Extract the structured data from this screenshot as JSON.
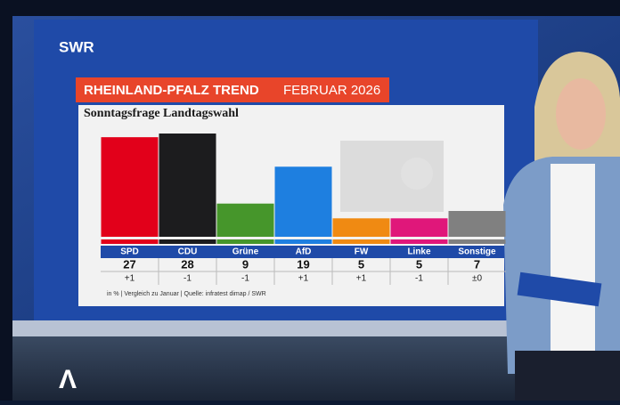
{
  "logo": "SWR",
  "chart_data": {
    "type": "bar",
    "title": "RHEINLAND-PFALZ TREND",
    "date": "FEBRUAR 2026",
    "subtitle": "Sonntagsfrage Landtagswahl",
    "categories": [
      "SPD",
      "CDU",
      "Grüne",
      "AfD",
      "FW",
      "Linke",
      "Sonstige"
    ],
    "values": [
      27,
      28,
      9,
      19,
      5,
      5,
      7
    ],
    "colors": [
      "#e2001a",
      "#1c1c1e",
      "#46962b",
      "#1e7fe0",
      "#f08a12",
      "#e0177a",
      "#808080"
    ],
    "changes": [
      "+1",
      "-1",
      "-1",
      "+1",
      "+1",
      "-1",
      "±0"
    ],
    "footnote": "in % | Vergleich zu Januar | Quelle: infratest dimap / SWR"
  }
}
